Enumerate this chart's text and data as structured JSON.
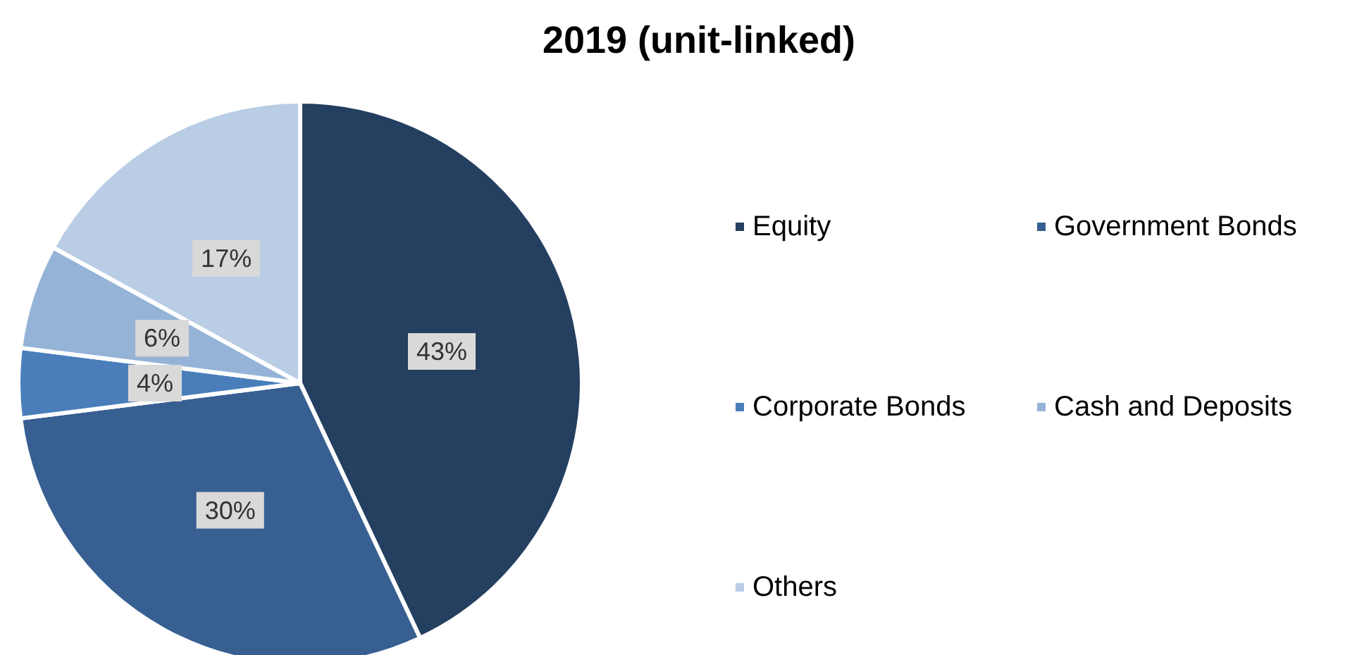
{
  "chart_data": {
    "type": "pie",
    "title": "2019 (unit-linked)",
    "categories": [
      "Equity",
      "Government Bonds",
      "Corporate Bonds",
      "Cash and Deposits",
      "Others"
    ],
    "values": [
      43,
      30,
      4,
      6,
      17
    ],
    "colors": [
      "#243f60",
      "#375f91",
      "#4a7ebb",
      "#95b3d7",
      "#b9cde5"
    ],
    "value_labels": [
      "43%",
      "30%",
      "4%",
      "6%",
      "17%"
    ],
    "legend": "right"
  }
}
